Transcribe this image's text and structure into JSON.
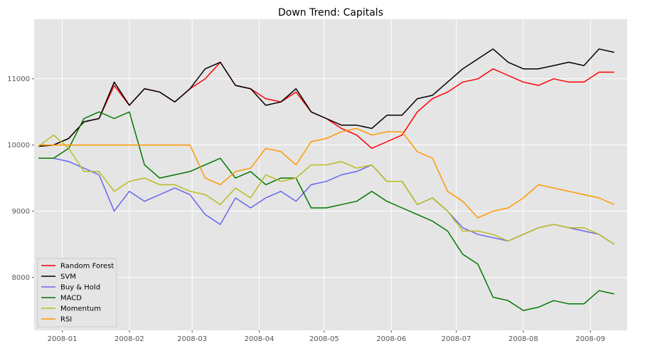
{
  "chart_data": {
    "type": "line",
    "title": "Down Trend: Capitals",
    "xlabel": "",
    "ylabel": "",
    "x_ticks": [
      "2008-01",
      "2008-02",
      "2008-03",
      "2008-04",
      "2008-05",
      "2008-06",
      "2008-07",
      "2008-08",
      "2008-09"
    ],
    "x_range": [
      "2007-12-19",
      "2008-09-18"
    ],
    "ylim": [
      7200,
      11900
    ],
    "y_ticks": [
      8000,
      9000,
      10000,
      11000
    ],
    "grid": true,
    "legend_position": "lower-left",
    "x": [
      "2007-12-21",
      "2007-12-28",
      "2008-01-04",
      "2008-01-11",
      "2008-01-18",
      "2008-01-25",
      "2008-02-01",
      "2008-02-08",
      "2008-02-15",
      "2008-02-22",
      "2008-02-29",
      "2008-03-07",
      "2008-03-14",
      "2008-03-21",
      "2008-03-28",
      "2008-04-04",
      "2008-04-11",
      "2008-04-18",
      "2008-04-25",
      "2008-05-02",
      "2008-05-09",
      "2008-05-16",
      "2008-05-23",
      "2008-05-30",
      "2008-06-06",
      "2008-06-13",
      "2008-06-20",
      "2008-06-27",
      "2008-07-04",
      "2008-07-11",
      "2008-07-18",
      "2008-07-25",
      "2008-08-01",
      "2008-08-08",
      "2008-08-15",
      "2008-08-22",
      "2008-08-29",
      "2008-09-05",
      "2008-09-12"
    ],
    "series": [
      {
        "name": "Random Forest",
        "color": "#ff0000",
        "values": [
          9980,
          10000,
          10100,
          10350,
          10400,
          10900,
          10600,
          10850,
          10800,
          10650,
          10850,
          11000,
          11250,
          10900,
          10850,
          10700,
          10650,
          10800,
          10500,
          10400,
          10250,
          10150,
          9950,
          10050,
          10150,
          10500,
          10700,
          10800,
          10950,
          11000,
          11150,
          11050,
          10950,
          10900,
          11000,
          10950,
          10950,
          11100,
          11100
        ]
      },
      {
        "name": "SVM",
        "color": "#000000",
        "values": [
          9980,
          10000,
          10100,
          10350,
          10400,
          10950,
          10600,
          10850,
          10800,
          10650,
          10850,
          11150,
          11250,
          10900,
          10850,
          10600,
          10650,
          10850,
          10500,
          10400,
          10300,
          10300,
          10250,
          10450,
          10450,
          10700,
          10750,
          10950,
          11150,
          11300,
          11450,
          11250,
          11150,
          11150,
          11200,
          11250,
          11200,
          11450,
          11400
        ]
      },
      {
        "name": "Buy & Hold",
        "color": "#6666ee",
        "values": [
          9800,
          9800,
          9750,
          9650,
          9550,
          9000,
          9300,
          9150,
          9250,
          9350,
          9250,
          8950,
          8800,
          9200,
          9050,
          9200,
          9300,
          9150,
          9400,
          9450,
          9550,
          9600,
          9700,
          9450,
          9450,
          9100,
          9200,
          9000,
          8750,
          8650,
          8600,
          8550,
          8650,
          8750,
          8800,
          8750,
          8700,
          8650,
          8500
        ]
      },
      {
        "name": "MACD",
        "color": "#007700",
        "values": [
          9800,
          9800,
          9950,
          10400,
          10500,
          10400,
          10500,
          9700,
          9500,
          9550,
          9600,
          9700,
          9800,
          9500,
          9600,
          9400,
          9500,
          9500,
          9050,
          9050,
          9100,
          9150,
          9300,
          9150,
          9050,
          8950,
          8850,
          8700,
          8350,
          8200,
          7700,
          7650,
          7500,
          7550,
          7650,
          7600,
          7600,
          7800,
          7750
        ]
      },
      {
        "name": "Momentum",
        "color": "#bbbb22",
        "values": [
          9980,
          10150,
          9950,
          9600,
          9600,
          9300,
          9450,
          9500,
          9400,
          9400,
          9300,
          9250,
          9100,
          9350,
          9200,
          9550,
          9450,
          9500,
          9700,
          9700,
          9750,
          9650,
          9700,
          9450,
          9450,
          9100,
          9200,
          9000,
          8700,
          8700,
          8650,
          8550,
          8650,
          8750,
          8800,
          8750,
          8750,
          8650,
          8500
        ]
      },
      {
        "name": "RSI",
        "color": "#ff9900",
        "values": [
          10000,
          10000,
          10000,
          10000,
          10000,
          10000,
          10000,
          10000,
          10000,
          10000,
          10000,
          9500,
          9400,
          9600,
          9650,
          9950,
          9900,
          9700,
          10050,
          10100,
          10200,
          10250,
          10150,
          10200,
          10200,
          9900,
          9800,
          9300,
          9150,
          8900,
          9000,
          9050,
          9200,
          9400,
          9350,
          9300,
          9250,
          9200,
          9100
        ]
      }
    ]
  }
}
